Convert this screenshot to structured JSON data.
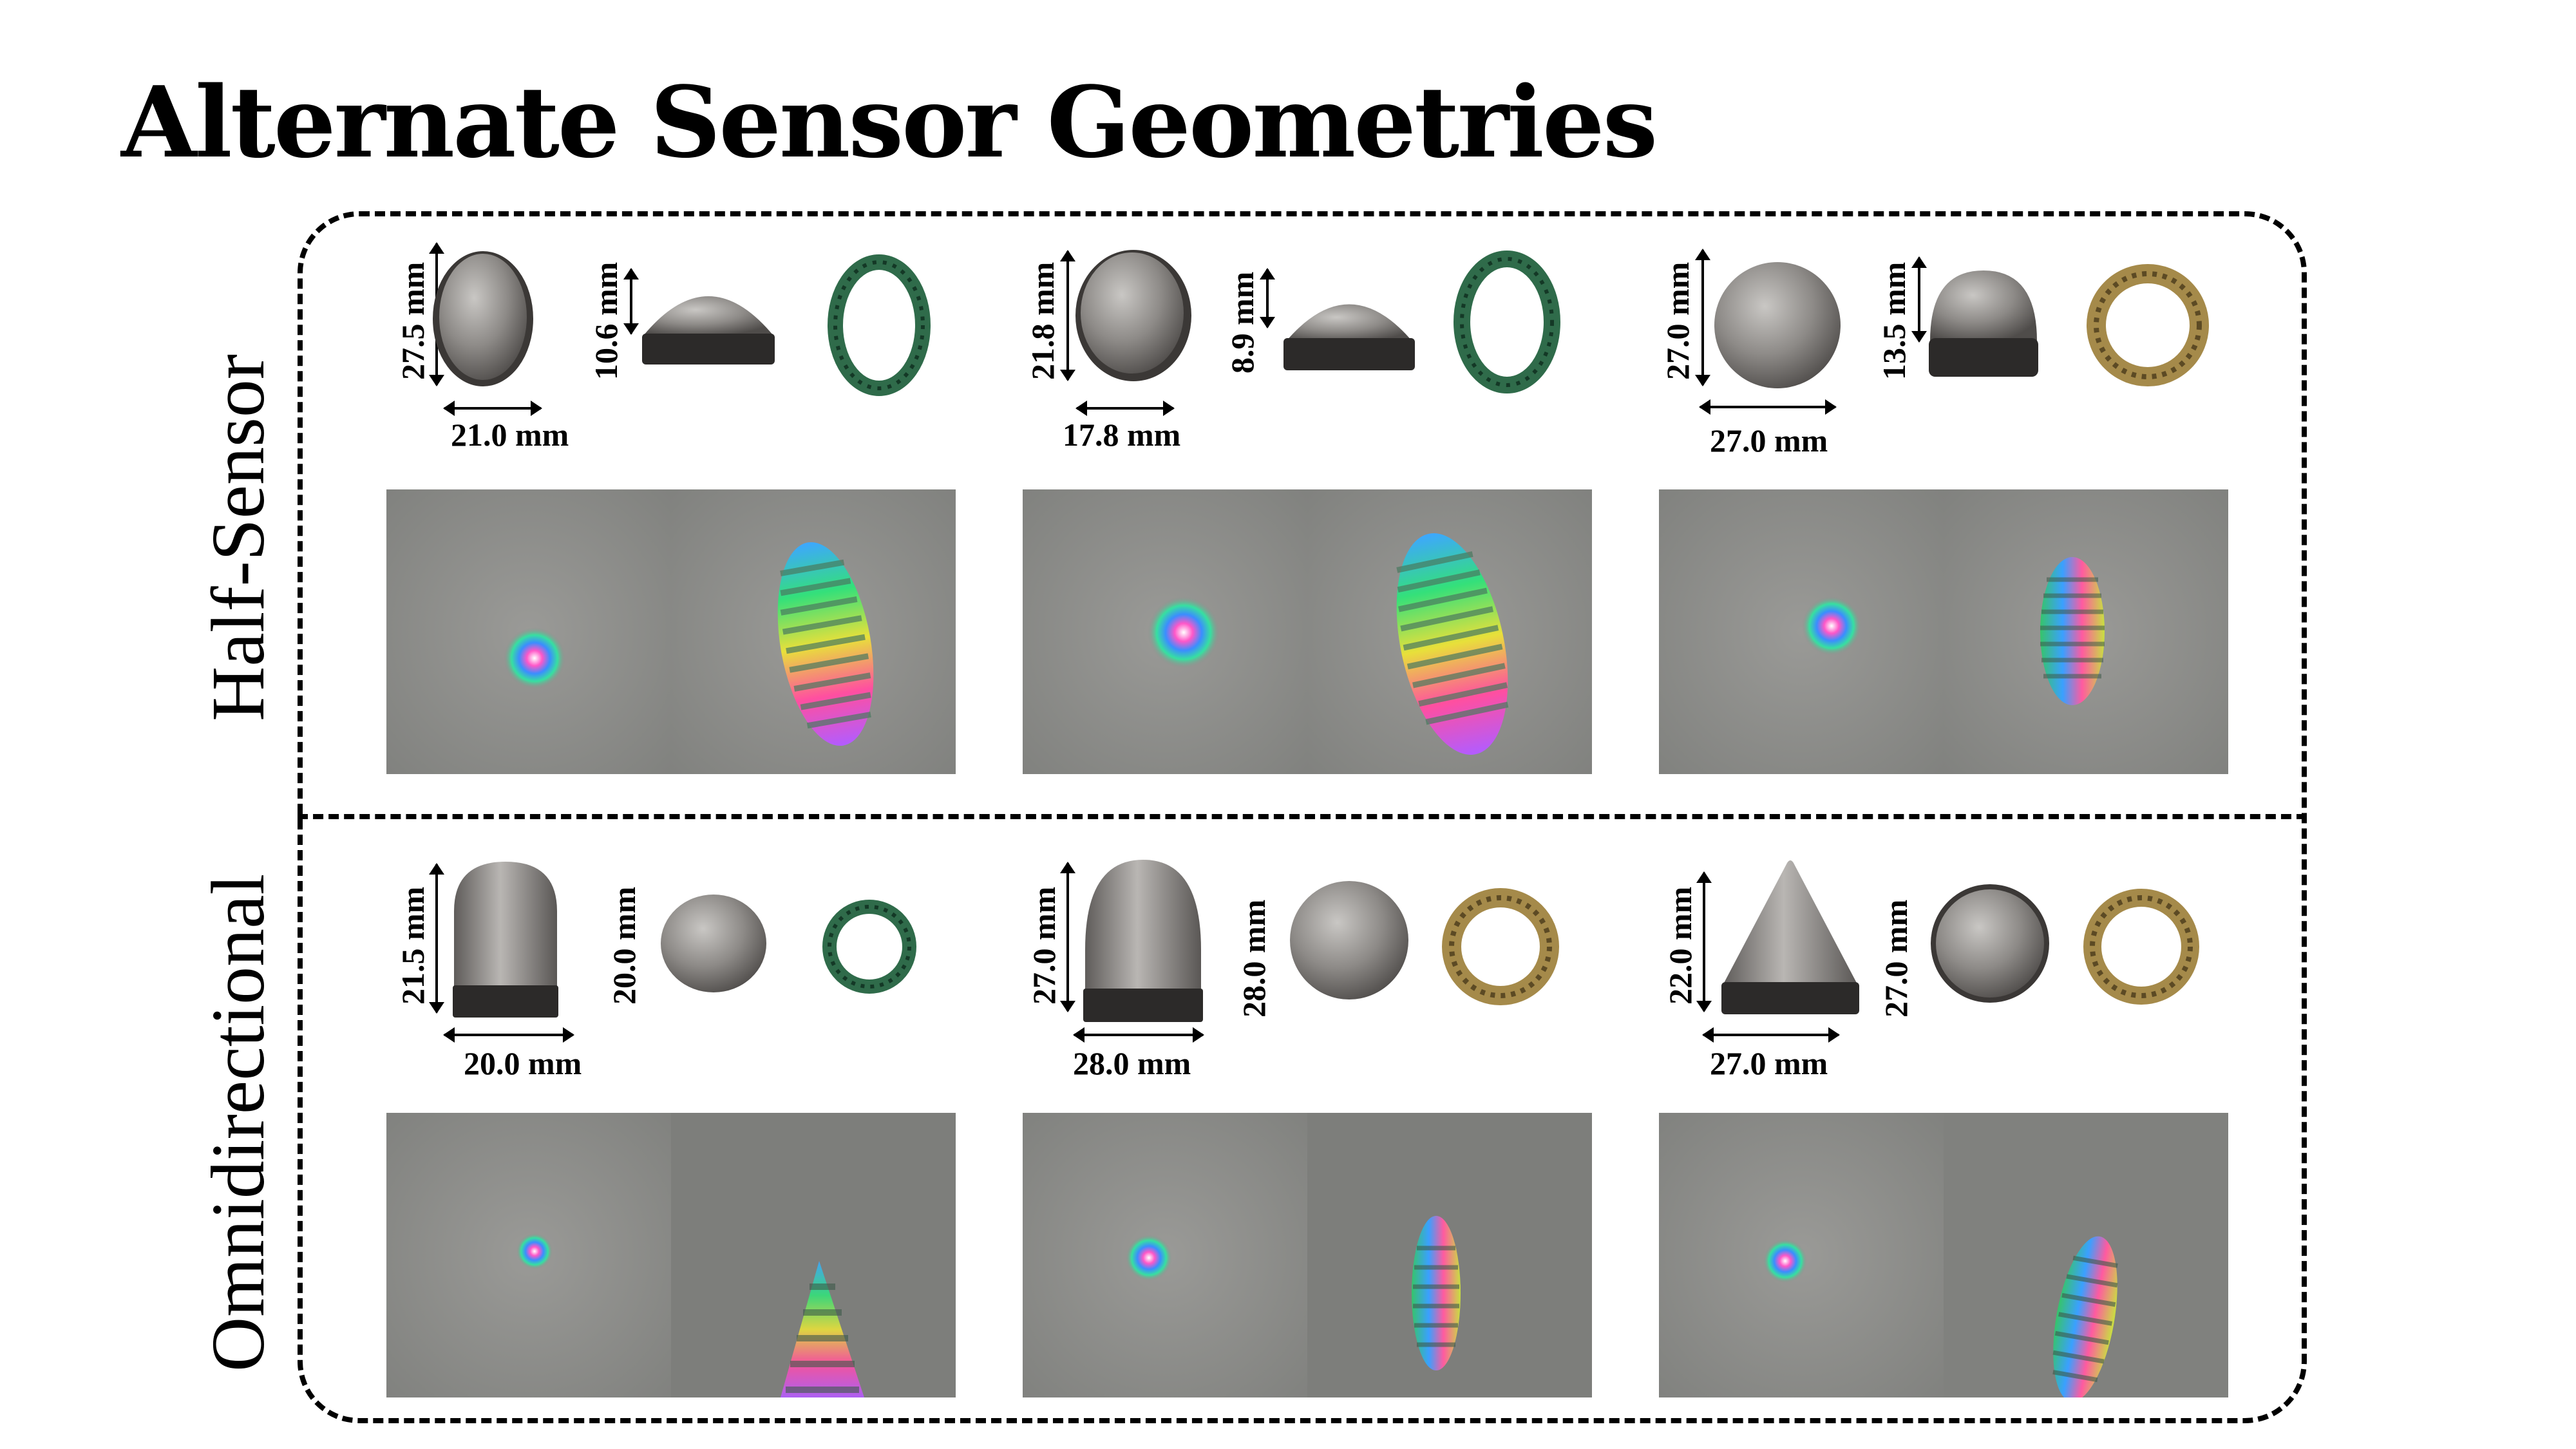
{
  "title": "Alternate Sensor Geometries",
  "rows": {
    "half": {
      "label": "Half-Sensor"
    },
    "omni": {
      "label": "Omnidirectional"
    }
  },
  "half_sensors": [
    {
      "height": "27.5 mm",
      "dome_height": "10.6 mm",
      "width": "21.0 mm",
      "ring_color": "#2f6b4a"
    },
    {
      "height": "21.8 mm",
      "dome_height": "8.9 mm",
      "width": "17.8 mm",
      "ring_color": "#2f6b4a"
    },
    {
      "height": "27.0 mm",
      "dome_height": "13.5 mm",
      "width": "27.0 mm",
      "ring_color": "#a58a4a"
    }
  ],
  "omni_sensors": [
    {
      "height": "21.5 mm",
      "top_diameter": "20.0 mm",
      "width": "20.0 mm",
      "ring_color": "#2f6b4a"
    },
    {
      "height": "27.0 mm",
      "top_diameter": "28.0 mm",
      "width": "28.0 mm",
      "ring_color": "#a58a4a"
    },
    {
      "height": "22.0 mm",
      "top_diameter": "27.0 mm",
      "width": "27.0 mm",
      "ring_color": "#a58a4a"
    }
  ],
  "colors": {
    "frame": "#000000",
    "sensor_gray": "#8a8785",
    "tile_gray": "#8e8f8c"
  }
}
